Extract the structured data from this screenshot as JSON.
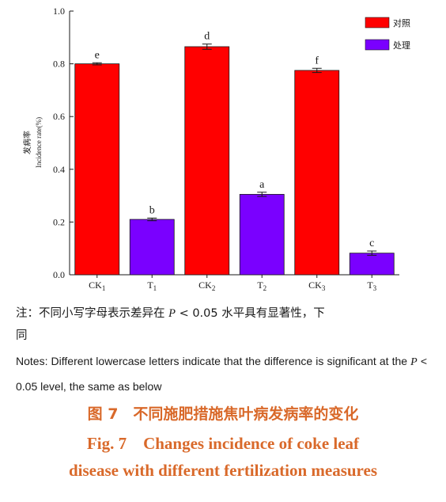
{
  "chart_data": {
    "type": "bar",
    "ylabel": "发病率",
    "ylabel_en": "Incidence rate(%)",
    "ylim": [
      0,
      1.0
    ],
    "yticks": [
      "0.0",
      "0.2",
      "0.4",
      "0.6",
      "0.8",
      "1.0"
    ],
    "categories": [
      {
        "base": "CK",
        "sub": "1"
      },
      {
        "base": "T",
        "sub": "1"
      },
      {
        "base": "CK",
        "sub": "2"
      },
      {
        "base": "T",
        "sub": "2"
      },
      {
        "base": "CK",
        "sub": "3"
      },
      {
        "base": "T",
        "sub": "3"
      }
    ],
    "values": [
      0.8,
      0.21,
      0.865,
      0.305,
      0.775,
      0.082
    ],
    "errors": [
      0.004,
      0.005,
      0.01,
      0.008,
      0.008,
      0.008
    ],
    "letters": [
      "e",
      "b",
      "d",
      "a",
      "f",
      "c"
    ],
    "groups": [
      "对照",
      "处理",
      "对照",
      "处理",
      "对照",
      "处理"
    ],
    "legend": [
      {
        "name": "对照",
        "color": "#ff0000"
      },
      {
        "name": "处理",
        "color": "#7a00ff"
      }
    ],
    "legend_position": "top-right",
    "grid": false
  },
  "notes": {
    "cn_part1": "注：不同小写字母表示差异在",
    "cn_p": "P",
    "cn_part2": "< 0.05 水平具有显著性，下",
    "cn_part3": "同",
    "en_part1": "Notes: Different lowercase letters indicate that the difference is significant at the",
    "en_p": "P",
    "en_part2": "< 0.05 level, the same as below"
  },
  "caption": {
    "cn": "图 7　不同施肥措施焦叶病发病率的变化",
    "en_line1": "Fig. 7　Changes incidence of coke leaf",
    "en_line2": "disease with different fertilization measures"
  }
}
